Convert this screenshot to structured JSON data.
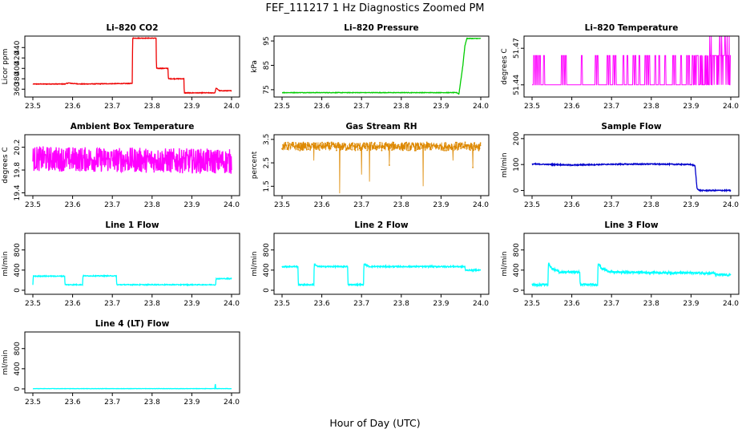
{
  "figure": {
    "title": "FEF_111217  1 Hz Diagnostics Zoomed PM",
    "xlabel": "Hour of Day (UTC)"
  },
  "chart_data": [
    {
      "type": "line",
      "title": "Li–820 CO2",
      "ylabel": "Licor ppm",
      "color": "#ee0000",
      "xlim": [
        23.5,
        24.0
      ],
      "ylim": [
        345,
        462
      ],
      "xticks": [
        "23.5",
        "23.6",
        "23.7",
        "23.8",
        "23.9",
        "24.0"
      ],
      "yticks": [
        {
          "v": 360,
          "label": "360"
        },
        {
          "v": 380,
          "label": "380"
        },
        {
          "v": 400,
          "label": "400"
        },
        {
          "v": 420,
          "label": "420"
        },
        {
          "v": 440,
          "label": "440"
        }
      ],
      "noise": 0.6,
      "x": [
        23.5,
        23.58,
        23.59,
        23.6,
        23.62,
        23.75,
        23.751,
        23.81,
        23.811,
        23.84,
        23.841,
        23.88,
        23.881,
        23.958,
        23.961,
        23.97,
        24.0
      ],
      "y": [
        370,
        370,
        372,
        371,
        370,
        371,
        458,
        458,
        400,
        400,
        380,
        380,
        353,
        353,
        362,
        357,
        357
      ]
    },
    {
      "type": "line",
      "title": "Li–820 Pressure",
      "ylabel": "kPa",
      "color": "#00cc00",
      "xlim": [
        23.5,
        24.0
      ],
      "ylim": [
        72,
        97
      ],
      "xticks": [
        "23.5",
        "23.6",
        "23.7",
        "23.8",
        "23.9",
        "24.0"
      ],
      "yticks": [
        {
          "v": 75,
          "label": "75"
        },
        {
          "v": 85,
          "label": "85"
        },
        {
          "v": 95,
          "label": "95"
        }
      ],
      "noise": 0.1,
      "x": [
        23.5,
        23.94,
        23.945,
        23.955,
        23.96,
        23.965,
        24.0
      ],
      "y": [
        73.8,
        73.8,
        73.2,
        85,
        93,
        96,
        96
      ]
    },
    {
      "type": "line",
      "title": "Li–820 Temperature",
      "ylabel": "degrees C",
      "color": "#ff00ff",
      "xlim": [
        23.5,
        24.0
      ],
      "ylim": [
        51.43,
        51.48
      ],
      "xticks": [
        "23.5",
        "23.6",
        "23.7",
        "23.8",
        "23.9",
        "24.0"
      ],
      "yticks": [
        {
          "v": 51.44,
          "label": "51.44"
        },
        {
          "v": 51.47,
          "label": "51.47"
        }
      ],
      "noise": 0,
      "binary": {
        "low": 51.44,
        "high": 51.464,
        "spike": 51.48
      },
      "spikes": [
        23.505,
        23.51,
        23.515,
        23.52,
        23.53,
        23.575,
        23.58,
        23.585,
        23.625,
        23.66,
        23.665,
        23.69,
        23.695,
        23.705,
        23.71,
        23.73,
        23.74,
        23.755,
        23.76,
        23.77,
        23.785,
        23.79,
        23.795,
        23.81,
        23.82,
        23.835,
        23.855,
        23.86,
        23.875,
        23.89,
        23.895
      ],
      "denseFrom": 23.9
    },
    {
      "type": "line",
      "title": "Ambient Box Temperature",
      "ylabel": "degrees C",
      "color": "#ff00ff",
      "xlim": [
        23.5,
        24.0
      ],
      "ylim": [
        19.35,
        20.42
      ],
      "xticks": [
        "23.5",
        "23.6",
        "23.7",
        "23.8",
        "23.9",
        "24.0"
      ],
      "yticks": [
        {
          "v": 19.4,
          "label": "19.4"
        },
        {
          "v": 19.8,
          "label": "19.8"
        },
        {
          "v": 20.2,
          "label": "20.2"
        }
      ],
      "noise": 0.22,
      "x": [
        23.5,
        24.0
      ],
      "y": [
        20.0,
        19.95
      ]
    },
    {
      "type": "scatter",
      "title": "Gas Stream RH",
      "ylabel": "percent",
      "color": "#dd8800",
      "xlim": [
        23.5,
        24.0
      ],
      "ylim": [
        1.1,
        3.7
      ],
      "xticks": [
        "23.5",
        "23.6",
        "23.7",
        "23.8",
        "23.9",
        "24.0"
      ],
      "yticks": [
        {
          "v": 1.5,
          "label": "1.5"
        },
        {
          "v": 2.5,
          "label": "2.5"
        },
        {
          "v": 3.5,
          "label": "3.5"
        }
      ],
      "noise": 0.18,
      "x": [
        23.5,
        24.0
      ],
      "y": [
        3.2,
        3.2
      ],
      "dips": [
        {
          "x": 23.645,
          "y": 1.2
        },
        {
          "x": 23.72,
          "y": 1.7
        },
        {
          "x": 23.7,
          "y": 2.0
        },
        {
          "x": 23.855,
          "y": 1.5
        },
        {
          "x": 23.58,
          "y": 2.6
        },
        {
          "x": 23.77,
          "y": 2.4
        },
        {
          "x": 23.98,
          "y": 2.3
        },
        {
          "x": 23.93,
          "y": 2.6
        }
      ]
    },
    {
      "type": "line",
      "title": "Sample Flow",
      "ylabel": "ml/min",
      "color": "#0000cc",
      "xlim": [
        23.5,
        24.0
      ],
      "ylim": [
        -20,
        215
      ],
      "xticks": [
        "23.5",
        "23.6",
        "23.7",
        "23.8",
        "23.9",
        "24.0"
      ],
      "yticks": [
        {
          "v": 0,
          "label": "0"
        },
        {
          "v": 100,
          "label": "100"
        },
        {
          "v": 200,
          "label": "200"
        }
      ],
      "noise": 2,
      "x": [
        23.5,
        23.6,
        23.7,
        23.8,
        23.9,
        23.91,
        23.915,
        23.92,
        24.0
      ],
      "y": [
        102,
        98,
        101,
        102,
        100,
        95,
        10,
        0,
        0
      ]
    },
    {
      "type": "line",
      "title": "Line 1 Flow",
      "ylabel": "ml/min",
      "color": "#00ffff",
      "xlim": [
        23.5,
        24.0
      ],
      "ylim": [
        -80,
        1130
      ],
      "xticks": [
        "23.5",
        "23.6",
        "23.7",
        "23.8",
        "23.9",
        "24.0"
      ],
      "yticks": [
        {
          "v": 0,
          "label": "0"
        },
        {
          "v": 400,
          "label": "400"
        },
        {
          "v": 800,
          "label": "800"
        }
      ],
      "noise": 8,
      "x": [
        23.5,
        23.501,
        23.58,
        23.581,
        23.625,
        23.626,
        23.71,
        23.711,
        23.96,
        23.961,
        24.0
      ],
      "y": [
        110,
        280,
        280,
        110,
        110,
        285,
        285,
        110,
        110,
        230,
        230
      ]
    },
    {
      "type": "line",
      "title": "Line 2 Flow",
      "ylabel": "ml/min",
      "color": "#00ffff",
      "xlim": [
        23.5,
        24.0
      ],
      "ylim": [
        -80,
        1130
      ],
      "xticks": [
        "23.5",
        "23.6",
        "23.7",
        "23.8",
        "23.9",
        "24.0"
      ],
      "yticks": [
        {
          "v": 0,
          "label": "0"
        },
        {
          "v": 400,
          "label": "400"
        },
        {
          "v": 800,
          "label": "800"
        }
      ],
      "noise": 12,
      "x": [
        23.5,
        23.54,
        23.541,
        23.58,
        23.581,
        23.59,
        23.665,
        23.666,
        23.705,
        23.706,
        23.72,
        23.96,
        23.961,
        24.0
      ],
      "y": [
        470,
        470,
        110,
        110,
        520,
        470,
        470,
        110,
        110,
        520,
        470,
        470,
        400,
        400
      ]
    },
    {
      "type": "line",
      "title": "Line 3 Flow",
      "ylabel": "ml/min",
      "color": "#00ffff",
      "xlim": [
        23.5,
        24.0
      ],
      "ylim": [
        -80,
        1130
      ],
      "xticks": [
        "23.5",
        "23.6",
        "23.7",
        "23.8",
        "23.9",
        "24.0"
      ],
      "yticks": [
        {
          "v": 0,
          "label": "0"
        },
        {
          "v": 400,
          "label": "400"
        },
        {
          "v": 800,
          "label": "800"
        }
      ],
      "noise": 22,
      "x": [
        23.5,
        23.54,
        23.541,
        23.55,
        23.57,
        23.62,
        23.621,
        23.665,
        23.666,
        23.675,
        23.7,
        23.96,
        23.961,
        24.0
      ],
      "y": [
        110,
        110,
        540,
        430,
        360,
        360,
        110,
        110,
        540,
        430,
        360,
        340,
        310,
        300
      ]
    },
    {
      "type": "line",
      "title": "Line 4 (LT) Flow",
      "ylabel": "ml/min",
      "color": "#00ffff",
      "xlim": [
        23.5,
        24.0
      ],
      "ylim": [
        -80,
        1130
      ],
      "xticks": [
        "23.5",
        "23.6",
        "23.7",
        "23.8",
        "23.9",
        "24.0"
      ],
      "yticks": [
        {
          "v": 0,
          "label": "0"
        },
        {
          "v": 400,
          "label": "400"
        },
        {
          "v": 800,
          "label": "800"
        }
      ],
      "noise": 3,
      "x": [
        23.5,
        23.958,
        23.959,
        23.96,
        23.961,
        24.0
      ],
      "y": [
        5,
        5,
        130,
        5,
        5,
        5
      ]
    }
  ]
}
